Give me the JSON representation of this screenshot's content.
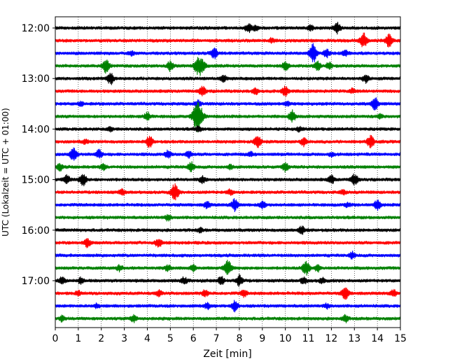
{
  "chart_data": {
    "type": "line",
    "title": "",
    "xlabel": "Zeit  [min]",
    "ylabel": "UTC (Lokalzeit = UTC + 01:00)",
    "xlim": [
      0,
      15
    ],
    "x_ticks": [
      "0",
      "1",
      "2",
      "3",
      "4",
      "5",
      "6",
      "7",
      "8",
      "9",
      "10",
      "11",
      "12",
      "13",
      "14",
      "15"
    ],
    "y_ticks": [
      "12:00",
      "13:00",
      "14:00",
      "15:00",
      "16:00",
      "17:00"
    ],
    "grid": "vertical dotted at each minute",
    "colors": [
      "#000000",
      "#ff0000",
      "#0000ff",
      "#008000"
    ],
    "series": [
      {
        "start": "12:00",
        "color": "#000000",
        "events": [
          [
            8.4,
            0.7
          ],
          [
            8.7,
            0.4
          ],
          [
            11.1,
            0.4
          ],
          [
            12.25,
            0.8
          ]
        ]
      },
      {
        "start": "12:15",
        "color": "#ff0000",
        "events": [
          [
            13.4,
            1.1
          ],
          [
            14.5,
            0.9
          ],
          [
            9.4,
            0.3
          ]
        ]
      },
      {
        "start": "12:30",
        "color": "#0000ff",
        "events": [
          [
            6.9,
            0.8
          ],
          [
            11.2,
            1.4
          ],
          [
            11.8,
            0.6
          ],
          [
            12.6,
            0.4
          ],
          [
            3.3,
            0.3
          ]
        ]
      },
      {
        "start": "12:45",
        "color": "#008000",
        "events": [
          [
            2.2,
            1.0
          ],
          [
            5.0,
            0.7
          ],
          [
            6.2,
            1.2
          ],
          [
            6.4,
            0.9
          ],
          [
            10.0,
            0.6
          ],
          [
            11.4,
            0.6
          ],
          [
            11.9,
            0.5
          ]
        ]
      },
      {
        "start": "13:00",
        "color": "#000000",
        "events": [
          [
            2.4,
            0.8
          ],
          [
            7.3,
            0.6
          ],
          [
            13.5,
            0.6
          ]
        ]
      },
      {
        "start": "13:15",
        "color": "#ff0000",
        "events": [
          [
            6.4,
            0.7
          ],
          [
            8.7,
            0.5
          ],
          [
            10.0,
            0.7
          ],
          [
            12.9,
            0.3
          ]
        ]
      },
      {
        "start": "13:30",
        "color": "#0000ff",
        "events": [
          [
            1.1,
            0.3
          ],
          [
            6.2,
            0.5
          ],
          [
            10.1,
            0.3
          ],
          [
            13.9,
            0.9
          ]
        ]
      },
      {
        "start": "13:45",
        "color": "#008000",
        "events": [
          [
            4.0,
            0.6
          ],
          [
            6.2,
            2.4
          ],
          [
            10.3,
            0.8
          ],
          [
            14.1,
            0.3
          ]
        ]
      },
      {
        "start": "14:00",
        "color": "#000000",
        "events": [
          [
            2.4,
            0.3
          ],
          [
            6.2,
            0.4
          ],
          [
            10.6,
            0.3
          ]
        ]
      },
      {
        "start": "14:15",
        "color": "#ff0000",
        "events": [
          [
            1.3,
            0.3
          ],
          [
            4.1,
            0.8
          ],
          [
            8.8,
            0.9
          ],
          [
            10.8,
            0.6
          ],
          [
            13.7,
            0.9
          ]
        ]
      },
      {
        "start": "14:30",
        "color": "#0000ff",
        "events": [
          [
            0.8,
            1.0
          ],
          [
            1.9,
            0.6
          ],
          [
            4.9,
            0.5
          ],
          [
            5.8,
            0.5
          ],
          [
            8.5,
            0.3
          ],
          [
            12.0,
            0.3
          ]
        ]
      },
      {
        "start": "14:45",
        "color": "#008000",
        "events": [
          [
            0.2,
            0.5
          ],
          [
            2.1,
            0.4
          ],
          [
            5.9,
            0.7
          ],
          [
            7.6,
            0.3
          ],
          [
            10.0,
            0.6
          ]
        ]
      },
      {
        "start": "15:00",
        "color": "#000000",
        "events": [
          [
            0.5,
            0.6
          ],
          [
            1.2,
            0.9
          ],
          [
            6.4,
            0.5
          ],
          [
            12.0,
            0.6
          ],
          [
            13.0,
            0.8
          ]
        ]
      },
      {
        "start": "15:15",
        "color": "#ff0000",
        "events": [
          [
            2.9,
            0.4
          ],
          [
            5.2,
            1.2
          ],
          [
            7.6,
            0.4
          ],
          [
            12.5,
            0.3
          ]
        ]
      },
      {
        "start": "15:30",
        "color": "#0000ff",
        "events": [
          [
            6.6,
            0.5
          ],
          [
            7.8,
            0.9
          ],
          [
            9.0,
            0.6
          ],
          [
            12.7,
            0.3
          ],
          [
            14.0,
            0.7
          ]
        ]
      },
      {
        "start": "15:45",
        "color": "#008000",
        "events": [
          [
            4.9,
            0.4
          ]
        ]
      },
      {
        "start": "16:00",
        "color": "#000000",
        "events": [
          [
            6.3,
            0.3
          ],
          [
            10.7,
            0.6
          ]
        ]
      },
      {
        "start": "16:15",
        "color": "#ff0000",
        "events": [
          [
            1.4,
            0.6
          ],
          [
            4.5,
            0.7
          ]
        ]
      },
      {
        "start": "16:30",
        "color": "#0000ff",
        "events": [
          [
            12.9,
            0.5
          ]
        ]
      },
      {
        "start": "16:45",
        "color": "#008000",
        "events": [
          [
            2.8,
            0.4
          ],
          [
            4.9,
            0.4
          ],
          [
            6.0,
            0.5
          ],
          [
            7.5,
            1.1
          ],
          [
            10.9,
            1.0
          ],
          [
            11.4,
            0.5
          ]
        ]
      },
      {
        "start": "17:00",
        "color": "#000000",
        "events": [
          [
            0.3,
            0.6
          ],
          [
            1.1,
            0.4
          ],
          [
            5.6,
            0.5
          ],
          [
            7.2,
            0.6
          ],
          [
            8.0,
            0.8
          ],
          [
            10.8,
            0.5
          ],
          [
            11.6,
            0.4
          ]
        ]
      },
      {
        "start": "17:15",
        "color": "#ff0000",
        "events": [
          [
            1.0,
            0.3
          ],
          [
            4.5,
            0.4
          ],
          [
            6.5,
            0.5
          ],
          [
            8.2,
            0.5
          ],
          [
            12.6,
            0.9
          ],
          [
            14.7,
            0.5
          ]
        ]
      },
      {
        "start": "17:30",
        "color": "#0000ff",
        "events": [
          [
            1.8,
            0.3
          ],
          [
            6.6,
            0.4
          ],
          [
            7.8,
            0.8
          ],
          [
            11.8,
            0.3
          ]
        ]
      },
      {
        "start": "17:45",
        "color": "#008000",
        "events": [
          [
            0.3,
            0.4
          ],
          [
            3.4,
            0.5
          ],
          [
            12.6,
            0.5
          ]
        ]
      }
    ]
  }
}
